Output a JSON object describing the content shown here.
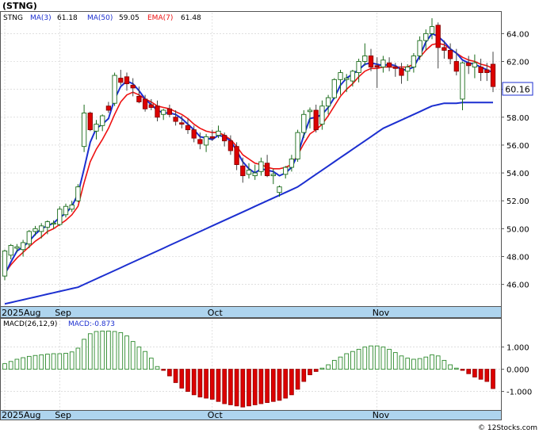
{
  "header": {
    "symbol": "(STNG)",
    "legend_ticker": "STNG",
    "ma3_label": "MA(3)",
    "ma3_value": "61.18",
    "ma50_label": "MA(50)",
    "ma50_value": "59.05",
    "ema7_label": "EMA(7)",
    "ema7_value": "61.48",
    "last_price_tag": "60.16",
    "macd_params": "MACD(26,12,9)",
    "macd_value": "MACD:-0.873",
    "watermark": "© 12Stocks.com"
  },
  "colors": {
    "up_candle": "#1a6b1a",
    "down_candle": "#dd0000",
    "ma_line": "#1c2fd0",
    "ema_line": "#ee1111",
    "axis_band": "#aed4ee",
    "macd_pos": "#2d8a2d",
    "macd_neg": "#dd0000",
    "grid": "#cccccc"
  },
  "chart_data": [
    {
      "type": "candlestick",
      "ylim": [
        44.5,
        65.5
      ],
      "y_ticks": [
        "46.00",
        "48.00",
        "50.00",
        "52.00",
        "54.00",
        "56.00",
        "58.00",
        "60.00",
        "62.00",
        "64.00"
      ],
      "x_labels": [
        {
          "label": "2025Aug",
          "index": 0
        },
        {
          "label": "Sep",
          "index": 9
        },
        {
          "label": "Oct",
          "index": 34
        },
        {
          "label": "Nov",
          "index": 61
        }
      ],
      "candles": [
        [
          46.6,
          48.5,
          46.3,
          48.4
        ],
        [
          48.1,
          48.9,
          47.8,
          48.8
        ],
        [
          48.6,
          48.9,
          48.3,
          48.7
        ],
        [
          48.5,
          49.2,
          48.0,
          49.0
        ],
        [
          48.9,
          49.9,
          48.6,
          49.8
        ],
        [
          49.8,
          50.2,
          49.5,
          50.0
        ],
        [
          49.8,
          50.4,
          49.3,
          50.2
        ],
        [
          50.1,
          50.6,
          49.6,
          50.5
        ],
        [
          50.4,
          50.6,
          50.0,
          50.4
        ],
        [
          50.3,
          51.6,
          50.2,
          51.4
        ],
        [
          51.0,
          51.8,
          50.8,
          51.6
        ],
        [
          51.4,
          52.0,
          51.2,
          51.7
        ],
        [
          52.0,
          53.2,
          51.9,
          53.0
        ],
        [
          55.9,
          58.9,
          55.5,
          58.3
        ],
        [
          58.3,
          58.4,
          57.0,
          57.1
        ],
        [
          57.0,
          57.8,
          56.4,
          57.5
        ],
        [
          57.4,
          58.2,
          57.0,
          58.1
        ],
        [
          58.8,
          59.1,
          58.3,
          58.5
        ],
        [
          59.0,
          61.2,
          58.8,
          61.0
        ],
        [
          60.8,
          61.4,
          60.3,
          60.5
        ],
        [
          60.9,
          61.2,
          59.9,
          60.4
        ],
        [
          60.3,
          60.8,
          59.5,
          60.1
        ],
        [
          59.5,
          60.2,
          59.0,
          59.1
        ],
        [
          59.3,
          59.6,
          58.4,
          58.6
        ],
        [
          58.9,
          59.3,
          58.5,
          58.7
        ],
        [
          58.8,
          59.2,
          57.7,
          58.0
        ],
        [
          58.2,
          58.6,
          57.8,
          58.5
        ],
        [
          58.6,
          58.9,
          58.0,
          58.2
        ],
        [
          58.0,
          58.5,
          57.4,
          57.7
        ],
        [
          57.6,
          58.1,
          57.2,
          57.5
        ],
        [
          57.4,
          57.9,
          56.8,
          57.1
        ],
        [
          57.1,
          57.4,
          56.2,
          56.5
        ],
        [
          56.4,
          56.9,
          55.7,
          56.1
        ],
        [
          56.0,
          56.8,
          55.5,
          56.6
        ],
        [
          56.6,
          57.1,
          56.3,
          56.5
        ],
        [
          56.7,
          57.4,
          56.5,
          57.0
        ],
        [
          56.7,
          56.9,
          55.9,
          56.3
        ],
        [
          56.3,
          56.7,
          55.3,
          55.6
        ],
        [
          55.9,
          56.2,
          54.2,
          54.6
        ],
        [
          54.5,
          55.1,
          53.3,
          53.8
        ],
        [
          53.9,
          54.7,
          53.6,
          54.2
        ],
        [
          53.8,
          54.6,
          53.5,
          54.0
        ],
        [
          54.1,
          55.1,
          53.8,
          54.8
        ],
        [
          54.7,
          55.3,
          53.7,
          53.8
        ],
        [
          53.8,
          54.3,
          53.2,
          53.9
        ],
        [
          52.6,
          53.1,
          52.3,
          53.0
        ],
        [
          53.9,
          54.5,
          53.6,
          54.4
        ],
        [
          54.4,
          55.3,
          54.1,
          55.0
        ],
        [
          55.0,
          57.1,
          54.8,
          56.9
        ],
        [
          56.9,
          58.5,
          56.5,
          58.2
        ],
        [
          58.4,
          58.7,
          57.2,
          58.5
        ],
        [
          58.5,
          58.9,
          56.9,
          57.1
        ],
        [
          57.5,
          59.2,
          57.1,
          58.8
        ],
        [
          58.8,
          59.6,
          58.2,
          59.4
        ],
        [
          59.4,
          60.8,
          59.3,
          60.7
        ],
        [
          60.7,
          61.4,
          59.6,
          61.2
        ],
        [
          60.7,
          61.1,
          59.8,
          60.8
        ],
        [
          60.6,
          61.4,
          60.2,
          61.3
        ],
        [
          61.2,
          62.2,
          60.5,
          62.0
        ],
        [
          62.0,
          63.3,
          61.7,
          62.4
        ],
        [
          62.4,
          62.9,
          61.3,
          61.6
        ],
        [
          61.7,
          62.3,
          60.1,
          61.6
        ],
        [
          61.6,
          62.4,
          61.2,
          62.1
        ],
        [
          61.9,
          62.3,
          61.3,
          61.6
        ],
        [
          61.6,
          61.9,
          60.9,
          61.5
        ],
        [
          61.5,
          61.9,
          60.4,
          61.0
        ],
        [
          61.3,
          61.8,
          60.6,
          61.6
        ],
        [
          61.6,
          62.6,
          61.2,
          62.4
        ],
        [
          62.4,
          63.8,
          62.1,
          63.5
        ],
        [
          63.5,
          64.3,
          62.8,
          64.0
        ],
        [
          64.0,
          65.1,
          63.6,
          64.5
        ],
        [
          64.6,
          64.8,
          61.5,
          63.0
        ],
        [
          63.0,
          63.5,
          62.2,
          62.8
        ],
        [
          62.8,
          63.3,
          61.8,
          62.2
        ],
        [
          62.0,
          62.9,
          61.0,
          61.3
        ],
        [
          59.3,
          62.0,
          58.5,
          61.9
        ],
        [
          61.9,
          62.4,
          61.1,
          61.7
        ],
        [
          61.6,
          62.5,
          60.8,
          61.9
        ],
        [
          61.6,
          62.2,
          60.6,
          61.2
        ],
        [
          61.4,
          61.9,
          60.6,
          61.2
        ],
        [
          61.8,
          62.7,
          59.8,
          60.2
        ]
      ],
      "ma3": [
        46.7,
        47.6,
        48.4,
        48.7,
        49.1,
        49.6,
        50.0,
        50.2,
        50.4,
        50.8,
        51.1,
        51.6,
        52.5,
        54.3,
        56.2,
        57.2,
        57.5,
        57.9,
        59.3,
        60.2,
        60.6,
        60.4,
        59.9,
        59.3,
        58.9,
        58.5,
        58.3,
        58.3,
        58.2,
        57.9,
        57.5,
        57.1,
        56.6,
        56.5,
        56.4,
        56.7,
        56.6,
        56.3,
        55.6,
        54.8,
        54.3,
        54.0,
        54.3,
        54.2,
        54.1,
        53.8,
        54.0,
        54.4,
        55.3,
        56.7,
        57.9,
        58.0,
        58.2,
        58.7,
        59.4,
        60.3,
        60.8,
        61.1,
        61.4,
        61.8,
        61.9,
        61.8,
        61.7,
        61.8,
        61.7,
        61.4,
        61.4,
        61.6,
        62.4,
        63.4,
        64.0,
        63.8,
        63.4,
        62.9,
        62.6,
        62.1,
        61.9,
        61.8,
        61.6,
        61.4,
        61.2
      ],
      "ema7": [
        46.8,
        47.4,
        47.9,
        48.3,
        48.7,
        49.1,
        49.4,
        49.8,
        50.0,
        50.3,
        50.6,
        51.0,
        51.6,
        53.3,
        54.8,
        55.7,
        56.4,
        57.2,
        58.2,
        59.1,
        59.6,
        59.8,
        59.6,
        59.3,
        59.1,
        58.8,
        58.7,
        58.6,
        58.4,
        58.2,
        57.9,
        57.5,
        57.2,
        57.0,
        56.9,
        56.9,
        56.7,
        56.4,
        55.9,
        55.3,
        55.0,
        54.7,
        54.6,
        54.4,
        54.3,
        54.3,
        54.4,
        54.6,
        55.3,
        56.1,
        56.8,
        57.1,
        57.5,
        58.1,
        58.8,
        59.5,
        60.0,
        60.4,
        60.9,
        61.3,
        61.5,
        61.5,
        61.6,
        61.6,
        61.6,
        61.6,
        61.6,
        61.8,
        62.3,
        62.8,
        63.2,
        63.3,
        63.2,
        62.9,
        62.6,
        62.3,
        62.1,
        62.0,
        61.8,
        61.7,
        61.5
      ],
      "ma50": [
        44.6,
        44.7,
        44.8,
        44.9,
        45.0,
        45.1,
        45.2,
        45.3,
        45.4,
        45.5,
        45.6,
        45.7,
        45.8,
        46.0,
        46.2,
        46.4,
        46.6,
        46.8,
        47.0,
        47.2,
        47.4,
        47.6,
        47.8,
        48.0,
        48.2,
        48.4,
        48.6,
        48.8,
        49.0,
        49.2,
        49.4,
        49.6,
        49.8,
        50.0,
        50.2,
        50.4,
        50.6,
        50.8,
        51.0,
        51.2,
        51.4,
        51.6,
        51.8,
        52.0,
        52.2,
        52.4,
        52.6,
        52.8,
        53.0,
        53.3,
        53.6,
        53.9,
        54.2,
        54.5,
        54.8,
        55.1,
        55.4,
        55.7,
        56.0,
        56.3,
        56.6,
        56.9,
        57.2,
        57.4,
        57.6,
        57.8,
        58.0,
        58.2,
        58.4,
        58.6,
        58.8,
        58.9,
        59.0,
        59.0,
        59.0,
        59.05,
        59.05,
        59.05,
        59.05,
        59.05,
        59.05
      ]
    },
    {
      "type": "bar",
      "title": "MACD(26,12,9)",
      "ylim": [
        -1.8,
        2.2
      ],
      "y_ticks": [
        "1.000",
        "0.000",
        "-1.000"
      ],
      "x_labels": [
        {
          "label": "2025Aug",
          "index": 0
        },
        {
          "label": "Sep",
          "index": 9
        },
        {
          "label": "Oct",
          "index": 34
        },
        {
          "label": "Nov",
          "index": 61
        }
      ],
      "values": [
        0.25,
        0.35,
        0.45,
        0.52,
        0.58,
        0.62,
        0.65,
        0.68,
        0.7,
        0.7,
        0.72,
        0.78,
        0.95,
        1.35,
        1.6,
        1.7,
        1.72,
        1.72,
        1.7,
        1.65,
        1.5,
        1.25,
        1.0,
        0.8,
        0.5,
        0.12,
        -0.05,
        -0.3,
        -0.6,
        -0.85,
        -1.0,
        -1.15,
        -1.25,
        -1.3,
        -1.35,
        -1.45,
        -1.55,
        -1.6,
        -1.65,
        -1.7,
        -1.65,
        -1.6,
        -1.55,
        -1.5,
        -1.45,
        -1.4,
        -1.3,
        -1.15,
        -0.9,
        -0.55,
        -0.25,
        -0.1,
        0.05,
        0.2,
        0.4,
        0.55,
        0.7,
        0.8,
        0.9,
        1.0,
        1.05,
        1.05,
        1.0,
        0.9,
        0.75,
        0.6,
        0.5,
        0.45,
        0.48,
        0.55,
        0.65,
        0.6,
        0.4,
        0.2,
        0.05,
        -0.05,
        -0.2,
        -0.35,
        -0.45,
        -0.55,
        -0.87
      ]
    }
  ]
}
